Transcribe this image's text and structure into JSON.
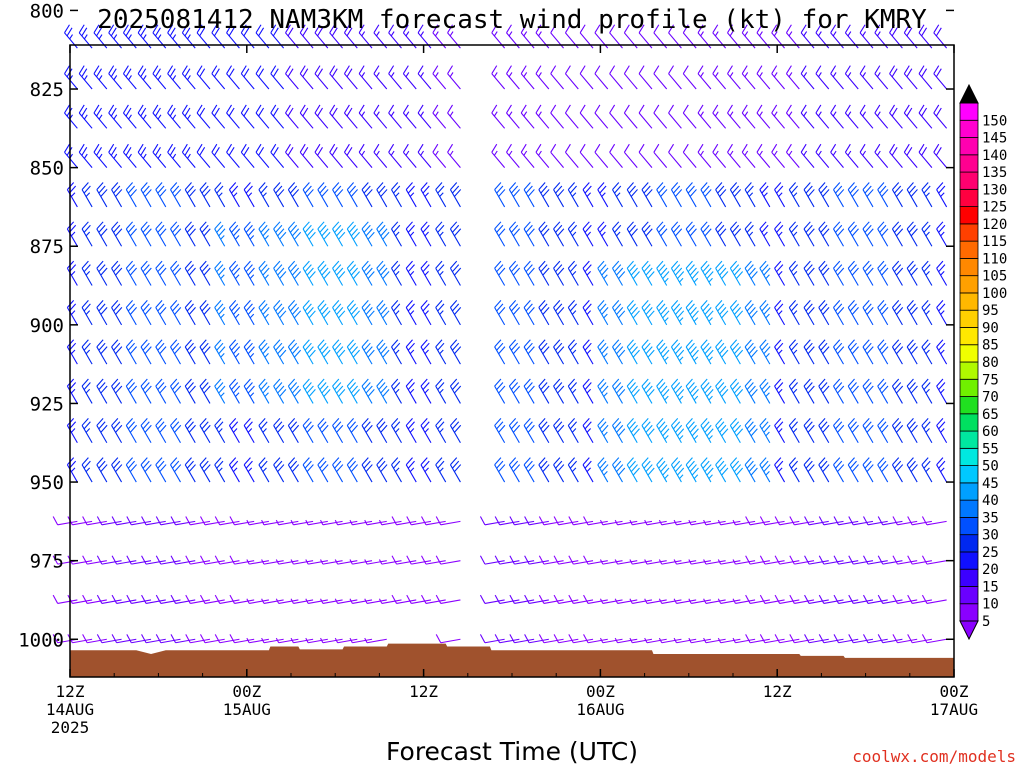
{
  "title": "2025081412 NAM3KM forecast wind profile (kt) for KMRY",
  "watermark": "coolwx.com/models",
  "chart_data": {
    "type": "wind_barb_profile",
    "title": "2025081412 NAM3KM forecast wind profile (kt) for KMRY",
    "xlabel": "Forecast Time (UTC)",
    "ylabel": "",
    "x_range_hours": [
      0,
      60
    ],
    "y_range_hpa": [
      811,
      1012
    ],
    "y_ticks": [
      800,
      825,
      850,
      875,
      900,
      925,
      950,
      975,
      1000
    ],
    "x_ticks": [
      {
        "hour": 0,
        "lines": [
          "12Z",
          "14AUG",
          "2025"
        ]
      },
      {
        "hour": 12,
        "lines": [
          "00Z",
          "15AUG"
        ]
      },
      {
        "hour": 24,
        "lines": [
          "12Z"
        ]
      },
      {
        "hour": 36,
        "lines": [
          "00Z",
          "16AUG"
        ]
      },
      {
        "hour": 48,
        "lines": [
          "12Z"
        ]
      },
      {
        "hour": 60,
        "lines": [
          "00Z",
          "17AUG"
        ]
      }
    ],
    "colorbar": {
      "levels": [
        5,
        10,
        15,
        20,
        25,
        30,
        35,
        40,
        45,
        50,
        55,
        60,
        65,
        70,
        75,
        80,
        85,
        90,
        95,
        100,
        105,
        110,
        115,
        120,
        125,
        130,
        135,
        140,
        145,
        150
      ],
      "colors": [
        "#8a00ff",
        "#6a00ff",
        "#3c00ff",
        "#1010ff",
        "#0028f0",
        "#0050ff",
        "#0078ff",
        "#00a0ff",
        "#00c8ff",
        "#00e8e0",
        "#00e8a0",
        "#00e060",
        "#20e020",
        "#70f000",
        "#b0f800",
        "#f0ff00",
        "#ffe800",
        "#ffd000",
        "#ffb800",
        "#ffa000",
        "#ff8800",
        "#ff6a00",
        "#ff4000",
        "#ff0000",
        "#ff0040",
        "#ff0070",
        "#ff0090",
        "#ff00b0",
        "#ff00d0",
        "#ff00ff"
      ],
      "over_color": "#000000",
      "under_color": "#8a00ff"
    },
    "terrain": {
      "color": "#a0522d",
      "surface_pressure_hpa": [
        {
          "hour": 0,
          "p": 1003.5
        },
        {
          "hour": 4.5,
          "p": 1003.5
        },
        {
          "hour": 5.5,
          "p": 1004.7
        },
        {
          "hour": 6.5,
          "p": 1003.5
        },
        {
          "hour": 13.5,
          "p": 1003.5
        },
        {
          "hour": 13.6,
          "p": 1002.3
        },
        {
          "hour": 15.5,
          "p": 1002.3
        },
        {
          "hour": 15.6,
          "p": 1003.2
        },
        {
          "hour": 18.5,
          "p": 1003.2
        },
        {
          "hour": 18.6,
          "p": 1002.3
        },
        {
          "hour": 21.5,
          "p": 1002.3
        },
        {
          "hour": 21.6,
          "p": 1001.4
        },
        {
          "hour": 25.5,
          "p": 1001.4
        },
        {
          "hour": 25.6,
          "p": 1002.3
        },
        {
          "hour": 28.5,
          "p": 1002.3
        },
        {
          "hour": 28.6,
          "p": 1003.5
        },
        {
          "hour": 39.5,
          "p": 1003.5
        },
        {
          "hour": 39.6,
          "p": 1004.7
        },
        {
          "hour": 49.5,
          "p": 1004.7
        },
        {
          "hour": 49.6,
          "p": 1005.3
        },
        {
          "hour": 52.5,
          "p": 1005.3
        },
        {
          "hour": 52.6,
          "p": 1005.9
        },
        {
          "hour": 60,
          "p": 1005.9
        }
      ]
    },
    "barb_grid": {
      "time_step_hours": 1,
      "pressure_levels": [
        812,
        825,
        837.5,
        850,
        862.5,
        875,
        887.5,
        900,
        912.5,
        925,
        937.5,
        950,
        962.5,
        975,
        987.5,
        1000
      ],
      "gap_hour": 28,
      "mid_level_wind": {
        "dir_deg": 330,
        "speed_kt_base": 22
      },
      "upper_level_wind": {
        "dir_deg": 320,
        "speed_kt_base": 18
      },
      "low_level_wind": {
        "dir_deg": 260,
        "speed_kt_base": 8
      }
    }
  }
}
